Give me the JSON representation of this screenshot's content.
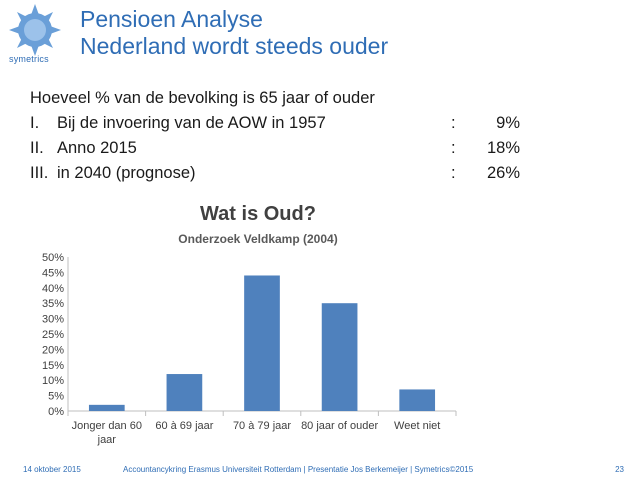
{
  "logo": {
    "text": "symetrics",
    "icon": "sun-gear-icon",
    "color": "#2f6db5"
  },
  "title": {
    "line1": "Pensioen Analyse",
    "line2": "Nederland wordt steeds ouder"
  },
  "content": {
    "intro": "Hoeveel % van de bevolking is 65 jaar of ouder",
    "items": [
      {
        "num": "I.",
        "text": "Bij de invoering van de AOW in 1957",
        "colon": ":",
        "value": "9%"
      },
      {
        "num": "II.",
        "text": "Anno 2015",
        "colon": ":",
        "value": "18%"
      },
      {
        "num": "III.",
        "text": "in 2040 (prognose)",
        "colon": ":",
        "value": "26%"
      }
    ]
  },
  "chart_data": {
    "type": "bar",
    "title": "Wat is Oud?",
    "subtitle": "Onderzoek Veldkamp (2004)",
    "categories": [
      "Jonger dan 60 jaar",
      "60 à 69 jaar",
      "70 à 79 jaar",
      "80 jaar of ouder",
      "Weet niet"
    ],
    "category_lines": [
      [
        "Jonger dan 60",
        "jaar"
      ],
      [
        "60 à 69 jaar"
      ],
      [
        "70 à 79 jaar"
      ],
      [
        "80 jaar of ouder"
      ],
      [
        "Weet niet"
      ]
    ],
    "values": [
      2,
      12,
      44,
      35,
      7
    ],
    "ylim": [
      0,
      50
    ],
    "yticks": [
      0,
      5,
      10,
      15,
      20,
      25,
      30,
      35,
      40,
      45,
      50
    ],
    "ytick_labels": [
      "0%",
      "5%",
      "10%",
      "15%",
      "20%",
      "25%",
      "30%",
      "35%",
      "40%",
      "45%",
      "50%"
    ],
    "bar_color": "#4f81bd",
    "grid": false
  },
  "footer": {
    "date": "14 oktober 2015",
    "credits": "Accountancykring Erasmus Universiteit Rotterdam   |   Presentatie Jos Berkemeijer   |   Symetrics©2015",
    "page": "23"
  }
}
